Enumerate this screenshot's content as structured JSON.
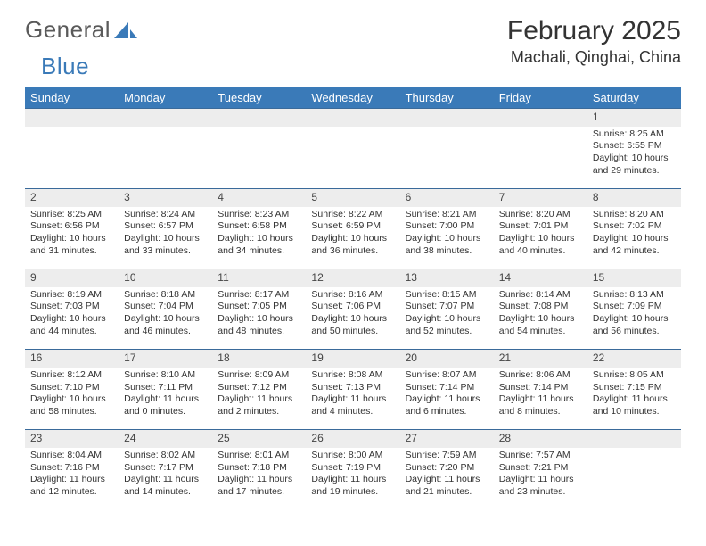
{
  "logo": {
    "text1": "General",
    "text2": "Blue"
  },
  "title": "February 2025",
  "location": "Machali, Qinghai, China",
  "weekday_header_bg": "#3a7ab8",
  "weekday_header_fg": "#ffffff",
  "daynum_row_bg": "#ededed",
  "daynum_row_border": "#3a6a9a",
  "text_color": "#333333",
  "weekdays": [
    "Sunday",
    "Monday",
    "Tuesday",
    "Wednesday",
    "Thursday",
    "Friday",
    "Saturday"
  ],
  "weeks": [
    [
      null,
      null,
      null,
      null,
      null,
      null,
      {
        "n": "1",
        "sr": "Sunrise: 8:25 AM",
        "ss": "Sunset: 6:55 PM",
        "dl": "Daylight: 10 hours and 29 minutes."
      }
    ],
    [
      {
        "n": "2",
        "sr": "Sunrise: 8:25 AM",
        "ss": "Sunset: 6:56 PM",
        "dl": "Daylight: 10 hours and 31 minutes."
      },
      {
        "n": "3",
        "sr": "Sunrise: 8:24 AM",
        "ss": "Sunset: 6:57 PM",
        "dl": "Daylight: 10 hours and 33 minutes."
      },
      {
        "n": "4",
        "sr": "Sunrise: 8:23 AM",
        "ss": "Sunset: 6:58 PM",
        "dl": "Daylight: 10 hours and 34 minutes."
      },
      {
        "n": "5",
        "sr": "Sunrise: 8:22 AM",
        "ss": "Sunset: 6:59 PM",
        "dl": "Daylight: 10 hours and 36 minutes."
      },
      {
        "n": "6",
        "sr": "Sunrise: 8:21 AM",
        "ss": "Sunset: 7:00 PM",
        "dl": "Daylight: 10 hours and 38 minutes."
      },
      {
        "n": "7",
        "sr": "Sunrise: 8:20 AM",
        "ss": "Sunset: 7:01 PM",
        "dl": "Daylight: 10 hours and 40 minutes."
      },
      {
        "n": "8",
        "sr": "Sunrise: 8:20 AM",
        "ss": "Sunset: 7:02 PM",
        "dl": "Daylight: 10 hours and 42 minutes."
      }
    ],
    [
      {
        "n": "9",
        "sr": "Sunrise: 8:19 AM",
        "ss": "Sunset: 7:03 PM",
        "dl": "Daylight: 10 hours and 44 minutes."
      },
      {
        "n": "10",
        "sr": "Sunrise: 8:18 AM",
        "ss": "Sunset: 7:04 PM",
        "dl": "Daylight: 10 hours and 46 minutes."
      },
      {
        "n": "11",
        "sr": "Sunrise: 8:17 AM",
        "ss": "Sunset: 7:05 PM",
        "dl": "Daylight: 10 hours and 48 minutes."
      },
      {
        "n": "12",
        "sr": "Sunrise: 8:16 AM",
        "ss": "Sunset: 7:06 PM",
        "dl": "Daylight: 10 hours and 50 minutes."
      },
      {
        "n": "13",
        "sr": "Sunrise: 8:15 AM",
        "ss": "Sunset: 7:07 PM",
        "dl": "Daylight: 10 hours and 52 minutes."
      },
      {
        "n": "14",
        "sr": "Sunrise: 8:14 AM",
        "ss": "Sunset: 7:08 PM",
        "dl": "Daylight: 10 hours and 54 minutes."
      },
      {
        "n": "15",
        "sr": "Sunrise: 8:13 AM",
        "ss": "Sunset: 7:09 PM",
        "dl": "Daylight: 10 hours and 56 minutes."
      }
    ],
    [
      {
        "n": "16",
        "sr": "Sunrise: 8:12 AM",
        "ss": "Sunset: 7:10 PM",
        "dl": "Daylight: 10 hours and 58 minutes."
      },
      {
        "n": "17",
        "sr": "Sunrise: 8:10 AM",
        "ss": "Sunset: 7:11 PM",
        "dl": "Daylight: 11 hours and 0 minutes."
      },
      {
        "n": "18",
        "sr": "Sunrise: 8:09 AM",
        "ss": "Sunset: 7:12 PM",
        "dl": "Daylight: 11 hours and 2 minutes."
      },
      {
        "n": "19",
        "sr": "Sunrise: 8:08 AM",
        "ss": "Sunset: 7:13 PM",
        "dl": "Daylight: 11 hours and 4 minutes."
      },
      {
        "n": "20",
        "sr": "Sunrise: 8:07 AM",
        "ss": "Sunset: 7:14 PM",
        "dl": "Daylight: 11 hours and 6 minutes."
      },
      {
        "n": "21",
        "sr": "Sunrise: 8:06 AM",
        "ss": "Sunset: 7:14 PM",
        "dl": "Daylight: 11 hours and 8 minutes."
      },
      {
        "n": "22",
        "sr": "Sunrise: 8:05 AM",
        "ss": "Sunset: 7:15 PM",
        "dl": "Daylight: 11 hours and 10 minutes."
      }
    ],
    [
      {
        "n": "23",
        "sr": "Sunrise: 8:04 AM",
        "ss": "Sunset: 7:16 PM",
        "dl": "Daylight: 11 hours and 12 minutes."
      },
      {
        "n": "24",
        "sr": "Sunrise: 8:02 AM",
        "ss": "Sunset: 7:17 PM",
        "dl": "Daylight: 11 hours and 14 minutes."
      },
      {
        "n": "25",
        "sr": "Sunrise: 8:01 AM",
        "ss": "Sunset: 7:18 PM",
        "dl": "Daylight: 11 hours and 17 minutes."
      },
      {
        "n": "26",
        "sr": "Sunrise: 8:00 AM",
        "ss": "Sunset: 7:19 PM",
        "dl": "Daylight: 11 hours and 19 minutes."
      },
      {
        "n": "27",
        "sr": "Sunrise: 7:59 AM",
        "ss": "Sunset: 7:20 PM",
        "dl": "Daylight: 11 hours and 21 minutes."
      },
      {
        "n": "28",
        "sr": "Sunrise: 7:57 AM",
        "ss": "Sunset: 7:21 PM",
        "dl": "Daylight: 11 hours and 23 minutes."
      },
      null
    ]
  ]
}
